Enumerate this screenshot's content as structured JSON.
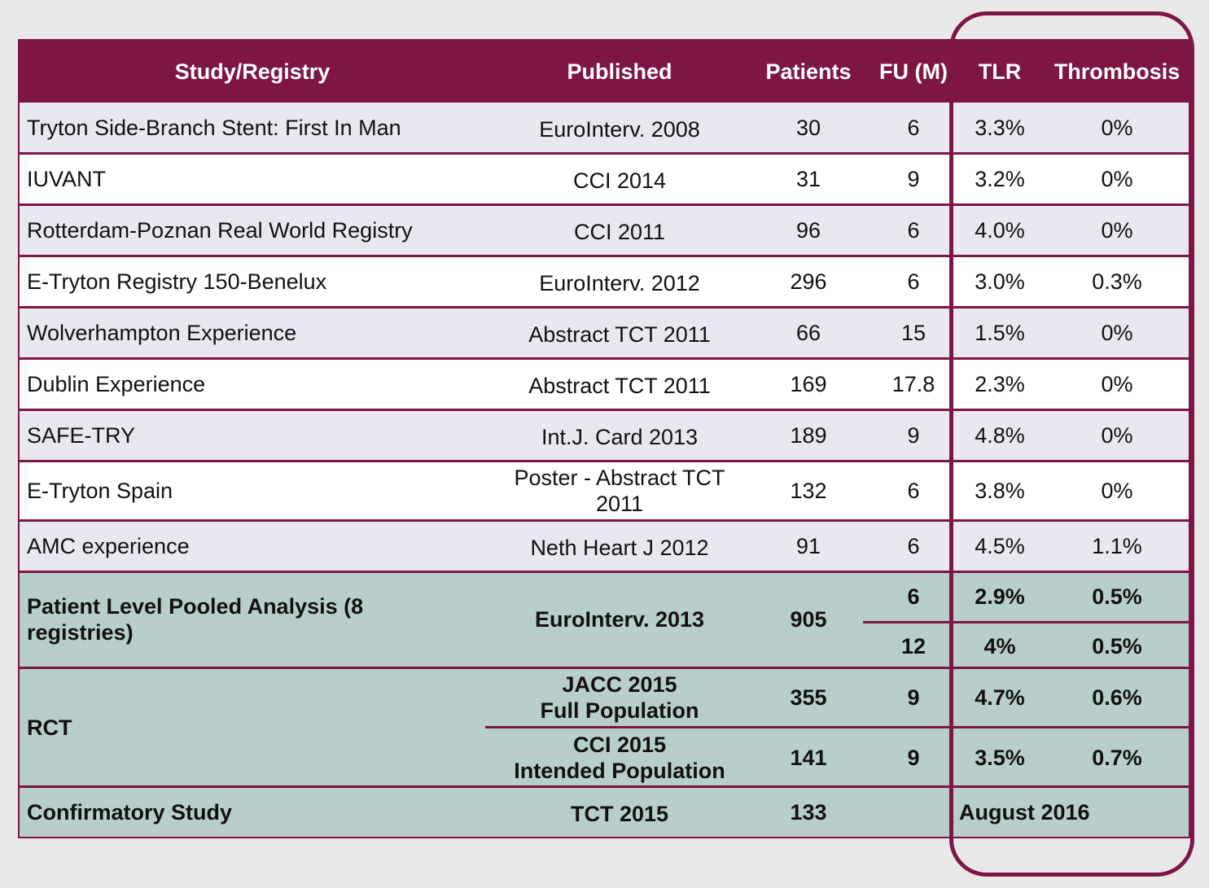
{
  "headers": {
    "study": "Study/Registry",
    "published": "Published",
    "patients": "Patients",
    "fu": "FU (M)",
    "tlr": "TLR",
    "thrombosis": "Thrombosis"
  },
  "rows": [
    {
      "study": "Tryton Side-Branch Stent: First In Man",
      "published": "EuroInterv. 2008",
      "patients": "30",
      "fu": "6",
      "tlr": "3.3%",
      "thrombosis": "0%"
    },
    {
      "study": "IUVANT",
      "published": "CCI 2014",
      "patients": "31",
      "fu": "9",
      "tlr": "3.2%",
      "thrombosis": "0%"
    },
    {
      "study": "Rotterdam-Poznan Real World Registry",
      "published": "CCI 2011",
      "patients": "96",
      "fu": "6",
      "tlr": "4.0%",
      "thrombosis": "0%"
    },
    {
      "study": "E-Tryton Registry 150-Benelux",
      "published": "EuroInterv. 2012",
      "patients": "296",
      "fu": "6",
      "tlr": "3.0%",
      "thrombosis": "0.3%"
    },
    {
      "study": "Wolverhampton Experience",
      "published": "Abstract TCT 2011",
      "patients": "66",
      "fu": "15",
      "tlr": "1.5%",
      "thrombosis": "0%"
    },
    {
      "study": "Dublin Experience",
      "published": "Abstract TCT 2011",
      "patients": "169",
      "fu": "17.8",
      "tlr": "2.3%",
      "thrombosis": "0%"
    },
    {
      "study": "SAFE-TRY",
      "published": "Int.J. Card 2013",
      "patients": "189",
      "fu": "9",
      "tlr": "4.8%",
      "thrombosis": "0%"
    },
    {
      "study": "E-Tryton Spain",
      "published_line1": "Poster - Abstract TCT",
      "published_line2": "2011",
      "patients": "132",
      "fu": "6",
      "tlr": "3.8%",
      "thrombosis": "0%"
    },
    {
      "study": "AMC experience",
      "published": "Neth Heart J 2012",
      "patients": "91",
      "fu": "6",
      "tlr": "4.5%",
      "thrombosis": "1.1%"
    }
  ],
  "pooled": {
    "study_line1": "Patient Level Pooled Analysis (8",
    "study_line2": "registries)",
    "published": "EuroInterv. 2013",
    "patients": "905",
    "sub": [
      {
        "fu": "6",
        "tlr": "2.9%",
        "thrombosis": "0.5%"
      },
      {
        "fu": "12",
        "tlr": "4%",
        "thrombosis": "0.5%"
      }
    ]
  },
  "rct": {
    "study": "RCT",
    "sub": [
      {
        "published_line1": "JACC 2015",
        "published_line2": "Full Population",
        "patients": "355",
        "fu": "9",
        "tlr": "4.7%",
        "thrombosis": "0.6%"
      },
      {
        "published_line1": "CCI 2015",
        "published_line2": "Intended Population",
        "patients": "141",
        "fu": "9",
        "tlr": "3.5%",
        "thrombosis": "0.7%"
      }
    ]
  },
  "confirmatory": {
    "study": "Confirmatory Study",
    "published": "TCT 2015",
    "patients": "133",
    "result": "August 2016"
  },
  "colors": {
    "header_bg": "#7d1644",
    "row_grey": "#e9e8f0",
    "row_teal": "#b8ceca"
  }
}
